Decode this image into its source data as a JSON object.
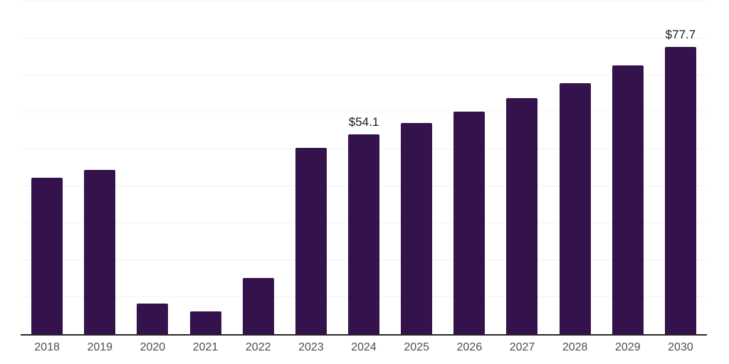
{
  "chart": {
    "background_color": "#ffffff",
    "bar_color": "#34124b",
    "gridline_color": "#f2f2f2",
    "axis_line_color": "#262626",
    "tick_label_color": "#4d4d4d",
    "data_label_color": "#1a1a1a"
  },
  "chart_data": {
    "type": "bar",
    "title": "",
    "xlabel": "",
    "ylabel": "",
    "categories": [
      "2018",
      "2019",
      "2020",
      "2021",
      "2022",
      "2023",
      "2024",
      "2025",
      "2026",
      "2027",
      "2028",
      "2029",
      "2030"
    ],
    "values": [
      42.3,
      44.4,
      8.3,
      6.2,
      15.2,
      50.4,
      54.1,
      57.1,
      60.2,
      63.8,
      67.9,
      72.7,
      77.7
    ],
    "data_labels": [
      "",
      "",
      "",
      "",
      "",
      "",
      "$54.1",
      "",
      "",
      "",
      "",
      "",
      "$77.7"
    ],
    "ylim": [
      0,
      90
    ],
    "gridline_step": 10,
    "grid": "horizontal",
    "legend": "none",
    "y_tick_labels_visible": false
  }
}
